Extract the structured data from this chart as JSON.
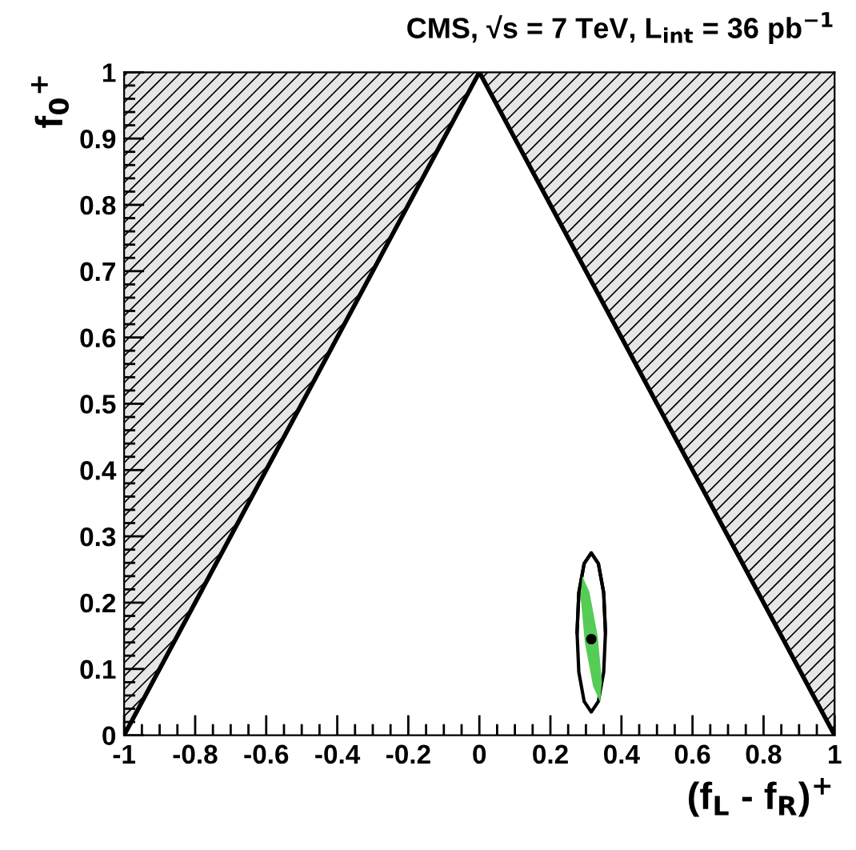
{
  "chart_data": {
    "type": "scatter",
    "title": "CMS, √s = 7 TeV, L$_{int}$ = 36 pb$^{−1}$",
    "xlabel": "(f$_{L}$ - f$_{R}$)$^{+}$",
    "ylabel": "f$_{0}$$^{+}$",
    "xlim": [
      -1,
      1
    ],
    "ylim": [
      0,
      1
    ],
    "xticks": [
      -1,
      -0.8,
      -0.6,
      -0.4,
      -0.2,
      0,
      0.2,
      0.4,
      0.6,
      0.8,
      1
    ],
    "yticks": [
      0,
      0.1,
      0.2,
      0.3,
      0.4,
      0.5,
      0.6,
      0.7,
      0.8,
      0.9,
      1
    ],
    "grid": false,
    "legend": false,
    "series": [
      {
        "type": "line",
        "color": "#000000",
        "x": [
          -1,
          0,
          1
        ],
        "values": [
          0,
          1,
          0
        ],
        "lower": [
          0,
          1,
          0
        ],
        "upper": [
          1,
          1,
          1
        ]
      },
      {
        "type": "area",
        "color": "#55cc55",
        "x": [
          0.29,
          0.31,
          0.333,
          0.345,
          0.34,
          0.32,
          0.297,
          0.285,
          0.29
        ],
        "values": [
          0.24,
          0.216,
          0.15,
          0.081,
          0.05,
          0.074,
          0.14,
          0.209,
          0.24
        ]
      },
      {
        "type": "line",
        "color": "#000000",
        "x": [
          0.275,
          0.28,
          0.295,
          0.315,
          0.335,
          0.35,
          0.355
        ],
        "values": [
          0.155,
          0.215,
          0.259,
          0.275,
          0.259,
          0.215,
          0.155
        ],
        "lower": [
          0.155,
          0.095,
          0.051,
          0.035,
          0.051,
          0.095,
          0.155
        ],
        "upper": [
          0.155,
          0.215,
          0.259,
          0.275,
          0.259,
          0.215,
          0.155
        ]
      },
      {
        "type": "scatter",
        "color": "#000000",
        "x": [
          0.315
        ],
        "values": [
          0.145
        ]
      }
    ]
  }
}
